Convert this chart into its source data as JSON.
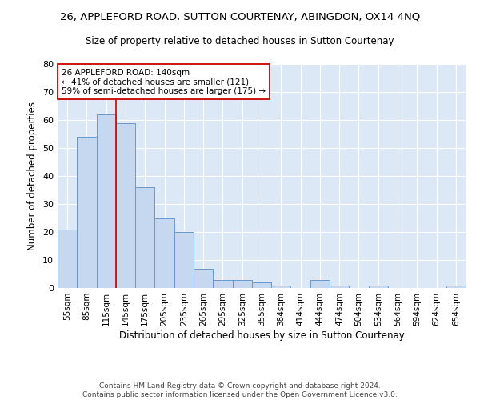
{
  "title_line1": "26, APPLEFORD ROAD, SUTTON COURTENAY, ABINGDON, OX14 4NQ",
  "title_line2": "Size of property relative to detached houses in Sutton Courtenay",
  "xlabel": "Distribution of detached houses by size in Sutton Courtenay",
  "ylabel": "Number of detached properties",
  "categories": [
    "55sqm",
    "85sqm",
    "115sqm",
    "145sqm",
    "175sqm",
    "205sqm",
    "235sqm",
    "265sqm",
    "295sqm",
    "325sqm",
    "355sqm",
    "384sqm",
    "414sqm",
    "444sqm",
    "474sqm",
    "504sqm",
    "534sqm",
    "564sqm",
    "594sqm",
    "624sqm",
    "654sqm"
  ],
  "values": [
    21,
    54,
    62,
    59,
    36,
    25,
    20,
    7,
    3,
    3,
    2,
    1,
    0,
    3,
    1,
    0,
    1,
    0,
    0,
    0,
    1
  ],
  "bar_color": "#c5d8f0",
  "bar_edge_color": "#6699cc",
  "background_color": "#dce8f5",
  "grid_color": "#ffffff",
  "vline_color": "#cc0000",
  "vline_index": 3,
  "annotation_text": "26 APPLEFORD ROAD: 140sqm\n← 41% of detached houses are smaller (121)\n59% of semi-detached houses are larger (175) →",
  "annotation_box_facecolor": "#ffffff",
  "annotation_box_edgecolor": "#cc0000",
  "ylim": [
    0,
    80
  ],
  "yticks": [
    0,
    10,
    20,
    30,
    40,
    50,
    60,
    70,
    80
  ],
  "footer": "Contains HM Land Registry data © Crown copyright and database right 2024.\nContains public sector information licensed under the Open Government Licence v3.0.",
  "fig_bg": "#ffffff"
}
